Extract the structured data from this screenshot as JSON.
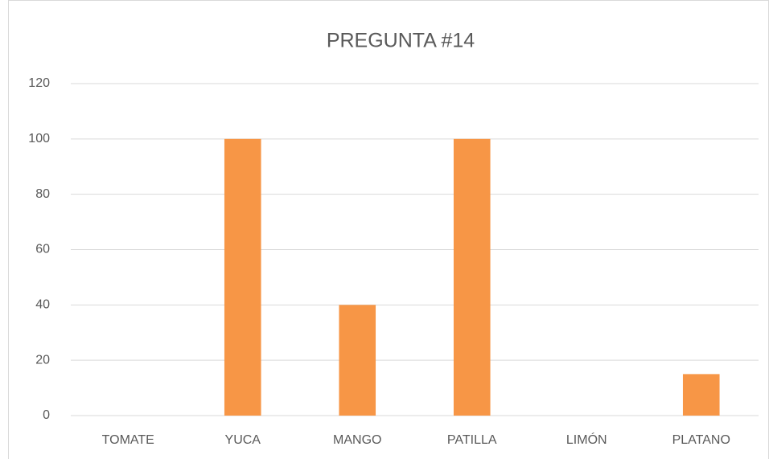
{
  "chart_data": {
    "type": "bar",
    "title": "PREGUNTA #14",
    "categories": [
      "TOMATE",
      "YUCA",
      "MANGO",
      "PATILLA",
      "LIMÓN",
      "PLATANO"
    ],
    "values": [
      0,
      100,
      40,
      100,
      0,
      15
    ],
    "color": "#f79646",
    "ylim": [
      0,
      120
    ],
    "yticks": [
      0,
      20,
      40,
      60,
      80,
      100,
      120
    ],
    "grid": true
  }
}
